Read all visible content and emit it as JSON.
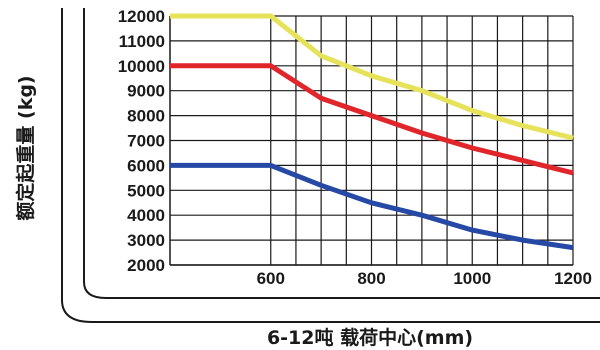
{
  "chart_data": {
    "type": "line",
    "xlabel": "6-12吨 载荷中心(mm)",
    "ylabel": "额定起重量 (kg)",
    "xlim": [
      400,
      1200
    ],
    "ylim": [
      2000,
      12000
    ],
    "x_ticks": [
      600,
      800,
      1000,
      1200
    ],
    "y_ticks": [
      12000,
      11000,
      10000,
      9000,
      8000,
      7000,
      6000,
      5000,
      4000,
      3000,
      2000
    ],
    "grid": {
      "horizontal_step": 1000,
      "vertical_step": 50,
      "vertical_from": 600
    },
    "series": [
      {
        "color": "#e6e35a",
        "x": [
          400,
          600,
          700,
          800,
          900,
          1000,
          1100,
          1200
        ],
        "y": [
          12000,
          12000,
          10400,
          9600,
          9000,
          8200,
          7600,
          7100
        ]
      },
      {
        "color": "#e0262b",
        "x": [
          400,
          600,
          700,
          800,
          900,
          1000,
          1100,
          1200
        ],
        "y": [
          10000,
          10000,
          8700,
          8000,
          7300,
          6700,
          6200,
          5700
        ]
      },
      {
        "color": "#2649a5",
        "x": [
          400,
          600,
          700,
          800,
          900,
          1000,
          1100,
          1200
        ],
        "y": [
          6000,
          6000,
          5200,
          4500,
          4000,
          3400,
          3000,
          2700
        ]
      }
    ]
  }
}
